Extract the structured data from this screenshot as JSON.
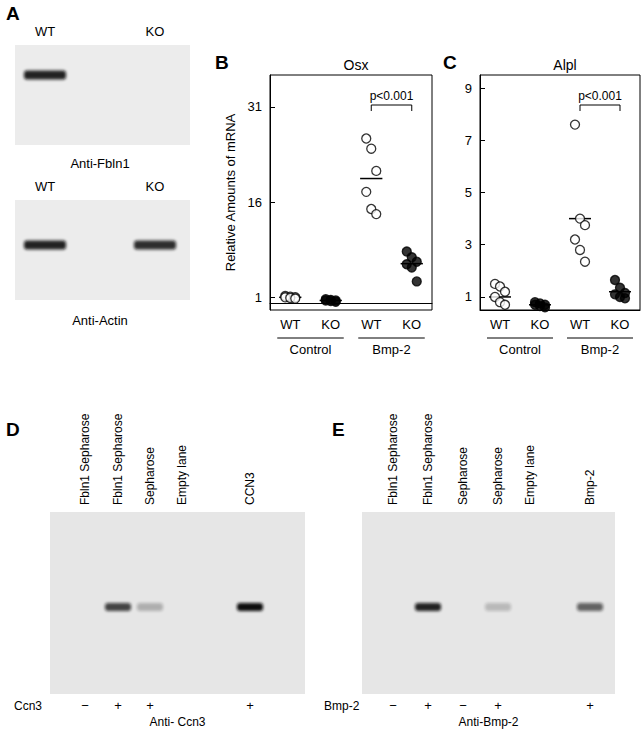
{
  "panels": {
    "A": {
      "label": "A",
      "blots": [
        {
          "lanes": [
            "WT",
            "KO"
          ],
          "bands": [
            0.9,
            0
          ],
          "antibody": "Anti-Fbln1"
        },
        {
          "lanes": [
            "WT",
            "KO"
          ],
          "bands": [
            0.9,
            0.85
          ],
          "antibody": "Anti-Actin"
        }
      ]
    },
    "D": {
      "label": "D",
      "lanes": [
        "Fbln1 Sepharose",
        "Fbln1 Sepharose",
        "Sepharose",
        "Empty lane",
        "CCN3"
      ],
      "bands": [
        0,
        0.75,
        0.25,
        0,
        1
      ],
      "treatment": {
        "label": "Ccn3",
        "signs": [
          "−",
          "+",
          "+",
          null,
          "+"
        ]
      },
      "antibody": "Anti- Ccn3"
    },
    "E": {
      "label": "E",
      "lanes": [
        "Fbln1 Sepharose",
        "Fbln1 Sepharose",
        "Sepharose",
        "Sepharose",
        "Empty lane",
        "Bmp-2"
      ],
      "bands": [
        0,
        0.9,
        0,
        0.2,
        0,
        0.6
      ],
      "treatment": {
        "label": "Bmp-2",
        "signs": [
          "−",
          "+",
          "−",
          "+",
          null,
          "+"
        ]
      },
      "antibody": "Anti-Bmp-2"
    }
  },
  "chart_data": [
    {
      "panel": "B",
      "type": "scatter",
      "title": "Osx",
      "ylabel": "Relative Amounts of mRNA",
      "categories": [
        "WT",
        "KO",
        "WT",
        "KO"
      ],
      "category_groups": [
        {
          "label": "Control",
          "from": 0,
          "to": 1
        },
        {
          "label": "Bmp-2",
          "from": 2,
          "to": 3
        }
      ],
      "values": [
        [
          1.2,
          1.1,
          1.0,
          1.0,
          0.9,
          0.8
        ],
        [
          0.7,
          0.6,
          0.5,
          0.5,
          0.4,
          0.3
        ],
        [
          26.0,
          24.4,
          20.9,
          17.6,
          14.9,
          14.1
        ],
        [
          8.2,
          7.3,
          6.6,
          6.2,
          5.7,
          3.5
        ]
      ],
      "means": [
        1.0,
        0.5,
        19.7,
        6.3
      ],
      "colors": [
        "#ffffff",
        "#000000",
        "#ffffff",
        "#000000"
      ],
      "marker": "circle",
      "ylim": [
        -1,
        36
      ],
      "yticks": [
        1,
        16,
        31
      ],
      "grid": false,
      "annotations": [
        {
          "text": "p<0.001",
          "from": 2,
          "to": 3
        }
      ]
    },
    {
      "panel": "C",
      "type": "scatter",
      "title": "Alpl",
      "categories": [
        "WT",
        "KO",
        "WT",
        "KO"
      ],
      "category_groups": [
        {
          "label": "Control",
          "from": 0,
          "to": 1
        },
        {
          "label": "Bmp-2",
          "from": 2,
          "to": 3
        }
      ],
      "values": [
        [
          1.5,
          1.4,
          1.2,
          1.0,
          0.8,
          0.7
        ],
        [
          0.8,
          0.75,
          0.7,
          0.7,
          0.65,
          0.6
        ],
        [
          7.6,
          4.0,
          3.75,
          3.2,
          2.8,
          2.35
        ],
        [
          1.65,
          1.35,
          1.15,
          1.1,
          1.0,
          0.95
        ]
      ],
      "means": [
        1.0,
        0.7,
        4.0,
        1.2
      ],
      "colors": [
        "#ffffff",
        "#000000",
        "#ffffff",
        "#000000"
      ],
      "marker": "circle",
      "ylim": [
        0.5,
        9.5
      ],
      "yticks": [
        1,
        3,
        5,
        7,
        9
      ],
      "grid": false,
      "annotations": [
        {
          "text": "p<0.001",
          "from": 2,
          "to": 3
        }
      ]
    }
  ]
}
